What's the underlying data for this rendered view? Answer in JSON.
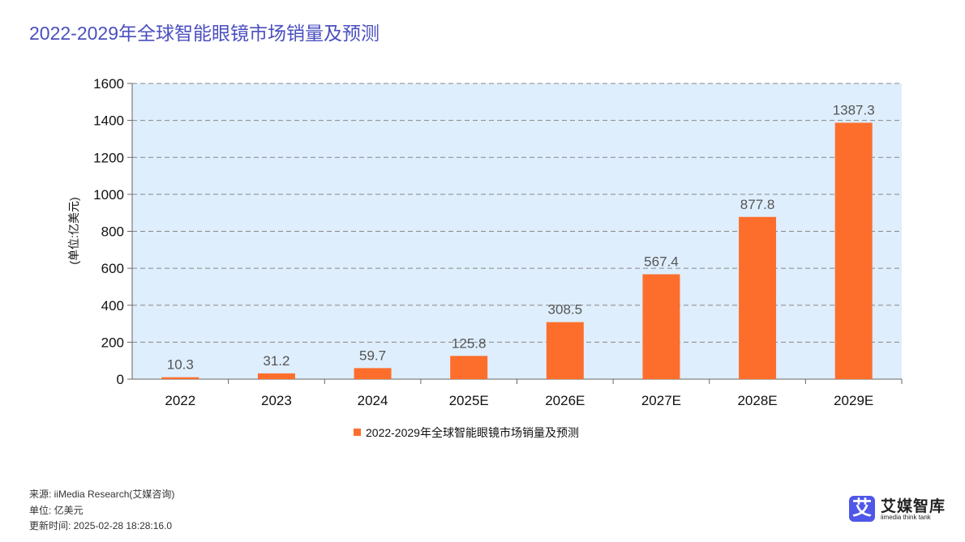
{
  "title": "2022-2029年全球智能眼镜市场销量及预测",
  "chart_data": {
    "type": "bar",
    "categories": [
      "2022",
      "2023",
      "2024",
      "2025E",
      "2026E",
      "2027E",
      "2028E",
      "2029E"
    ],
    "series": [
      {
        "name": "2022-2029年全球智能眼镜市场销量及预测",
        "values": [
          10.3,
          31.2,
          59.7,
          125.8,
          308.5,
          567.4,
          877.8,
          1387.3
        ]
      }
    ],
    "ylabel": "(单位:亿美元)",
    "ylim": [
      0,
      1600
    ],
    "yticks": [
      0,
      200,
      400,
      600,
      800,
      1000,
      1200,
      1400,
      1600
    ],
    "grid": true,
    "legend": "bottom",
    "colors": {
      "bar": "#fd6e2c",
      "plot_bg": "#deeefd"
    }
  },
  "footer": {
    "source": "来源: iiMedia Research(艾媒咨询)",
    "unit": "单位: 亿美元",
    "updated": "更新时间: 2025-02-28 18:28:16.0"
  },
  "logo": {
    "mark": "艾",
    "name": "艾媒智库",
    "tagline": "iimedia think tank"
  }
}
